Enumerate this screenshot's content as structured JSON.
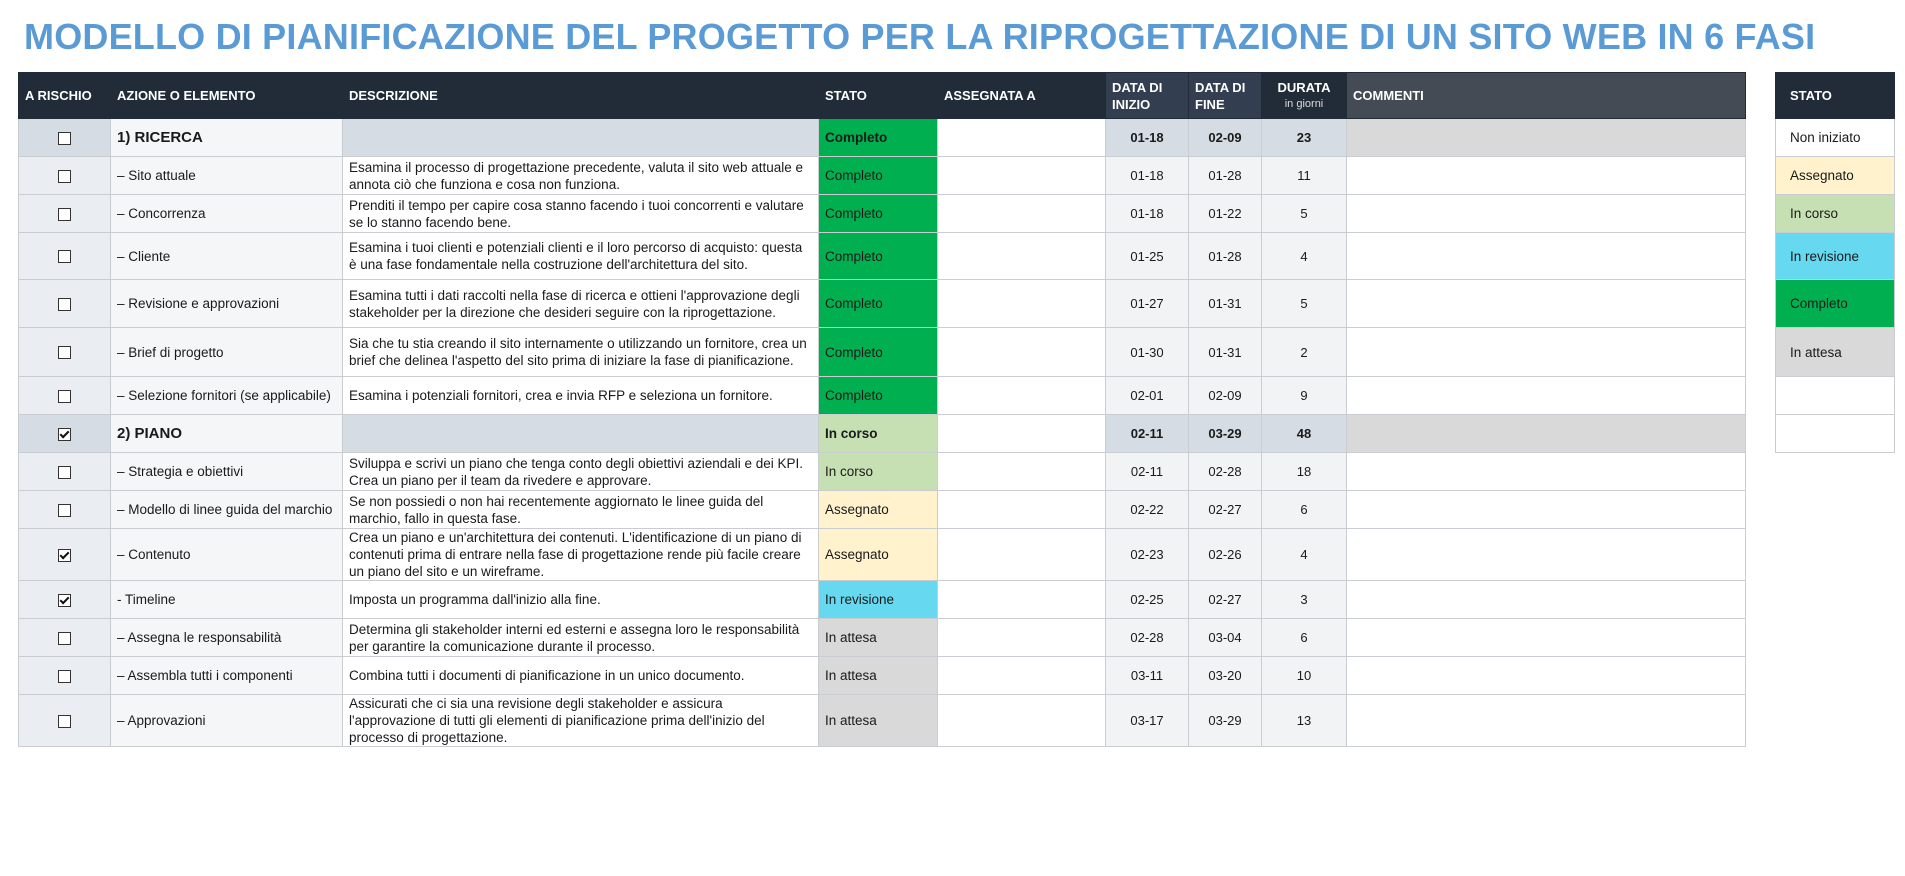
{
  "title": "MODELLO DI PIANIFICAZIONE DEL PROGETTO PER LA RIPROGETTAZIONE DI UN SITO WEB IN 6 FASI",
  "headers": {
    "risk": "A RISCHIO",
    "action": "AZIONE O ELEMENTO",
    "description": "DESCRIZIONE",
    "status": "STATO",
    "assigned": "ASSEGNATA A",
    "start_l1": "DATA DI",
    "start_l2": "INIZIO",
    "end_l1": "DATA DI",
    "end_l2": "FINE",
    "duration": "DURATA",
    "duration_sub": "in giorni",
    "comments": "COMMENTI"
  },
  "status_colors": {
    "Completo": "#00b050",
    "In corso": "#c6e0b4",
    "Assegnato": "#fff2cc",
    "In revisione": "#66d9f0",
    "In attesa": "#d9d9d9",
    "Non iniziato": "#ffffff"
  },
  "rows": [
    {
      "phase": true,
      "risk": false,
      "action": "1) RICERCA",
      "description": "",
      "status": "Completo",
      "assigned": "",
      "start": "01-18",
      "end": "02-09",
      "duration": "23",
      "comments": ""
    },
    {
      "phase": false,
      "risk": false,
      "action": "– Sito attuale",
      "description": "Esamina il processo di progettazione precedente, valuta il sito web attuale e annota ciò che funziona e cosa non funziona.",
      "status": "Completo",
      "assigned": "",
      "start": "01-18",
      "end": "01-28",
      "duration": "11",
      "comments": ""
    },
    {
      "phase": false,
      "risk": false,
      "action": "– Concorrenza",
      "description": "Prenditi il tempo per capire cosa stanno facendo i tuoi concorrenti e valutare se lo stanno facendo bene.",
      "status": "Completo",
      "assigned": "",
      "start": "01-18",
      "end": "01-22",
      "duration": "5",
      "comments": ""
    },
    {
      "phase": false,
      "risk": false,
      "action": "– Cliente",
      "description": "Esamina i tuoi clienti e potenziali clienti e il loro percorso di acquisto: questa è una fase fondamentale nella costruzione dell'architettura del sito.",
      "status": "Completo",
      "assigned": "",
      "start": "01-25",
      "end": "01-28",
      "duration": "4",
      "comments": ""
    },
    {
      "phase": false,
      "risk": false,
      "action": "– Revisione e approvazioni",
      "description": "Esamina tutti i dati raccolti nella fase di ricerca e ottieni l'approvazione degli stakeholder per la direzione che desideri seguire con la riprogettazione.",
      "status": "Completo",
      "assigned": "",
      "start": "01-27",
      "end": "01-31",
      "duration": "5",
      "comments": ""
    },
    {
      "phase": false,
      "risk": false,
      "action": "– Brief di progetto",
      "description": "Sia che tu stia creando il sito internamente o utilizzando un fornitore, crea un brief che delinea l'aspetto del sito prima di iniziare la fase di pianificazione.",
      "status": "Completo",
      "assigned": "",
      "start": "01-30",
      "end": "01-31",
      "duration": "2",
      "comments": ""
    },
    {
      "phase": false,
      "risk": false,
      "action": "– Selezione fornitori (se applicabile)",
      "description": "Esamina i potenziali fornitori, crea e invia RFP e seleziona un fornitore.",
      "status": "Completo",
      "assigned": "",
      "start": "02-01",
      "end": "02-09",
      "duration": "9",
      "comments": ""
    },
    {
      "phase": true,
      "risk": true,
      "action": "2) PIANO",
      "description": "",
      "status": "In corso",
      "assigned": "",
      "start": "02-11",
      "end": "03-29",
      "duration": "48",
      "comments": ""
    },
    {
      "phase": false,
      "risk": false,
      "action": "– Strategia e obiettivi",
      "description": "Sviluppa e scrivi un piano che tenga conto degli obiettivi aziendali e dei KPI. Crea un piano per il team da rivedere e approvare.",
      "status": "In corso",
      "assigned": "",
      "start": "02-11",
      "end": "02-28",
      "duration": "18",
      "comments": ""
    },
    {
      "phase": false,
      "risk": false,
      "action": "– Modello di linee guida del marchio",
      "description": "Se non possiedi o non hai recentemente aggiornato le linee guida del marchio, fallo in questa fase.",
      "status": "Assegnato",
      "assigned": "",
      "start": "02-22",
      "end": "02-27",
      "duration": "6",
      "comments": ""
    },
    {
      "phase": false,
      "risk": true,
      "action": "– Contenuto",
      "description": "Crea un piano e un'architettura dei contenuti. L'identificazione di un piano di contenuti prima di entrare nella fase di progettazione rende più facile creare un piano del sito e un wireframe.",
      "status": "Assegnato",
      "assigned": "",
      "start": "02-23",
      "end": "02-26",
      "duration": "4",
      "comments": ""
    },
    {
      "phase": false,
      "risk": true,
      "action": "- Timeline",
      "description": "Imposta un programma dall'inizio alla fine.",
      "status": "In revisione",
      "assigned": "",
      "start": "02-25",
      "end": "02-27",
      "duration": "3",
      "comments": ""
    },
    {
      "phase": false,
      "risk": false,
      "action": "– Assegna le responsabilità",
      "description": "Determina gli stakeholder interni ed esterni e assegna loro le responsabilità per garantire la comunicazione durante il processo.",
      "status": "In attesa",
      "assigned": "",
      "start": "02-28",
      "end": "03-04",
      "duration": "6",
      "comments": ""
    },
    {
      "phase": false,
      "risk": false,
      "action": "– Assembla tutti i componenti",
      "description": "Combina tutti i documenti di pianificazione in un unico documento.",
      "status": "In attesa",
      "assigned": "",
      "start": "03-11",
      "end": "03-20",
      "duration": "10",
      "comments": ""
    },
    {
      "phase": false,
      "risk": false,
      "action": "– Approvazioni",
      "description": "Assicurati che ci sia una revisione degli stakeholder e assicura l'approvazione di tutti gli elementi di pianificazione prima dell'inizio del processo di progettazione.",
      "status": "In attesa",
      "assigned": "",
      "start": "03-17",
      "end": "03-29",
      "duration": "13",
      "comments": ""
    }
  ],
  "legend": {
    "header": "STATO",
    "items": [
      "Non iniziato",
      "Assegnato",
      "In corso",
      "In revisione",
      "Completo",
      "In attesa",
      "",
      ""
    ]
  }
}
